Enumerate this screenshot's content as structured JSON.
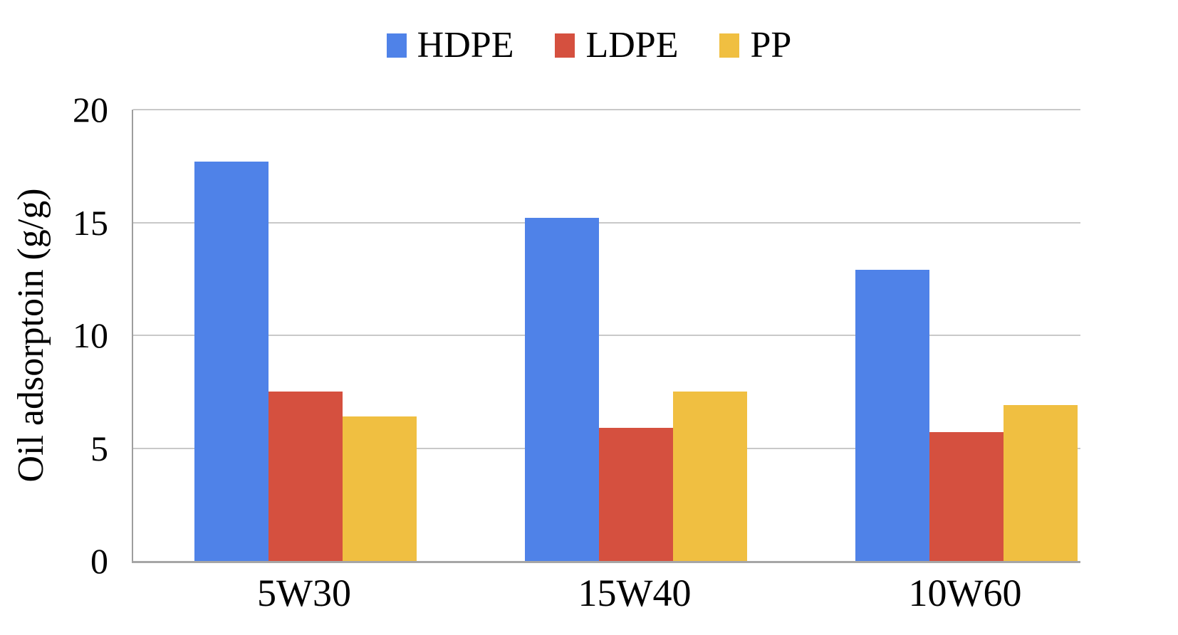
{
  "chart_data": {
    "type": "bar",
    "title": "",
    "ylabel": "Oil adsorptoin (g/g)",
    "xlabel": "",
    "categories": [
      "5W30",
      "15W40",
      "10W60"
    ],
    "series": [
      {
        "name": "HDPE",
        "color": "#4f82e8",
        "values": [
          17.7,
          15.2,
          12.9
        ]
      },
      {
        "name": "LDPE",
        "color": "#d5503f",
        "values": [
          7.5,
          5.9,
          5.7
        ]
      },
      {
        "name": "PP",
        "color": "#f0bf41",
        "values": [
          6.4,
          7.5,
          6.9
        ]
      }
    ],
    "ylim": [
      0,
      20
    ],
    "yticks": [
      0,
      5,
      10,
      15,
      20
    ],
    "grid": true,
    "legend_position": "top"
  },
  "colors": {
    "hdpe": "#4f82e8",
    "ldpe": "#d5503f",
    "pp": "#f0bf41"
  }
}
